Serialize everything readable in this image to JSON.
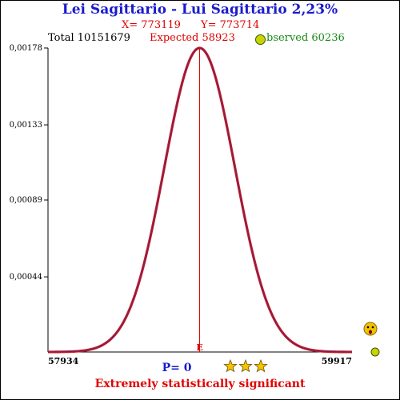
{
  "header": {
    "title": "Lei Sagittario - Lui Sagittario  2,23%",
    "x_label": "X= 773119",
    "y_label": "Y= 773714",
    "total_label": "Total  10151679",
    "expected_label": "Expected  58923",
    "observed_label": "bserved  60236"
  },
  "footer": {
    "p_label": "P= 0",
    "verdict": "Extremely statistically significant",
    "stars_count": 3
  },
  "colors": {
    "title": "#1a1acc",
    "accent_red": "#e00000",
    "observed_green": "#1a8a1a",
    "curve_outer": "#d01818",
    "curve_inner": "#3a2a9a"
  },
  "icons": {
    "observed_marker": "green-dot-icon",
    "stars": "star-icon",
    "face": "worried-face-icon",
    "side_marker": "green-dot-icon"
  },
  "chart_data": {
    "type": "line",
    "title": "Lei Sagittario - Lui Sagittario  2,23%",
    "xlabel": "",
    "ylabel": "",
    "xlim": [
      57934,
      59917
    ],
    "ylim": [
      0,
      0.00178
    ],
    "x_tick_labels": [
      "57934",
      "59917"
    ],
    "y_tick_labels": [
      "0,00044",
      "0,00089",
      "0,00133",
      "0,00178"
    ],
    "y_tick_values": [
      0.00044,
      0.00089,
      0.00133,
      0.00178
    ],
    "expected": 58923,
    "expected_marker_label": "E",
    "observed": 60236,
    "total": 10151679,
    "peak_density": 0.00178,
    "grid": false,
    "series": [
      {
        "distribution": "normal",
        "mean": 58923,
        "peak": 0.00178
      }
    ]
  }
}
